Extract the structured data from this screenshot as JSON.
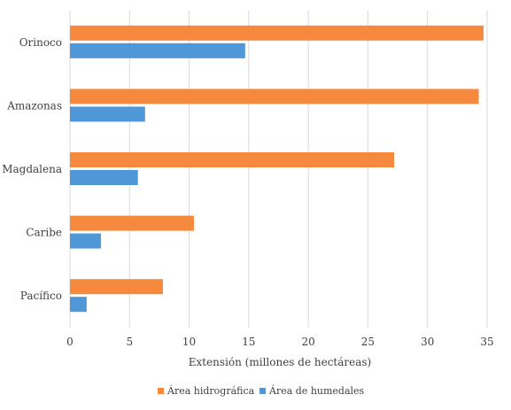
{
  "chart_data": {
    "type": "bar",
    "orientation": "horizontal",
    "categories": [
      "Orinoco",
      "Amazonas",
      "Magdalena",
      "Caribe",
      "Pacífico"
    ],
    "series": [
      {
        "name": "Área hidrográfica",
        "color": "#f58a3f",
        "values": [
          34.7,
          34.3,
          27.2,
          10.4,
          7.8
        ]
      },
      {
        "name": "Área de humedales",
        "color": "#4f97d6",
        "values": [
          14.7,
          6.3,
          5.7,
          2.6,
          1.4
        ]
      }
    ],
    "xlabel": "Extensión (millones de hectáreas)",
    "ylabel": "",
    "xlim": [
      0,
      35
    ],
    "xticks": [
      "0",
      "5",
      "10",
      "15",
      "20",
      "25",
      "30",
      "35"
    ],
    "grid": "vertical",
    "legend_position": "bottom"
  }
}
